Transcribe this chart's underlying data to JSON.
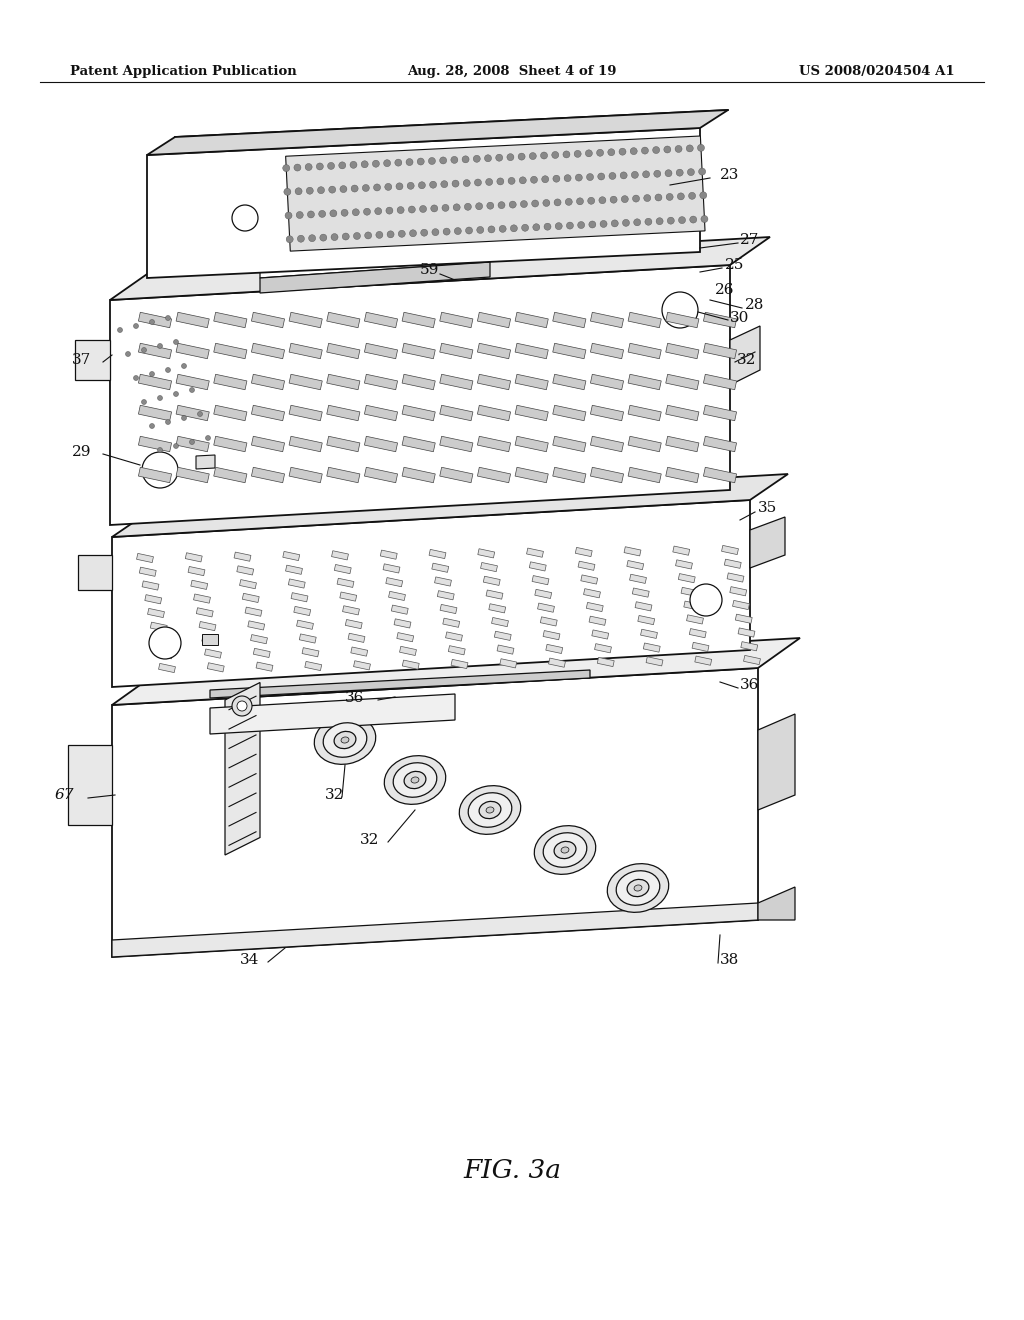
{
  "header_left": "Patent Application Publication",
  "header_center": "Aug. 28, 2008  Sheet 4 of 19",
  "header_right": "US 2008/0204504 A1",
  "caption": "FIG. 3a",
  "bg": "#ffffff",
  "lc": "#111111",
  "fc_white": "#ffffff",
  "fc_light": "#e8e8e8",
  "fc_med": "#d0d0d0",
  "fc_dark": "#b8b8b8"
}
